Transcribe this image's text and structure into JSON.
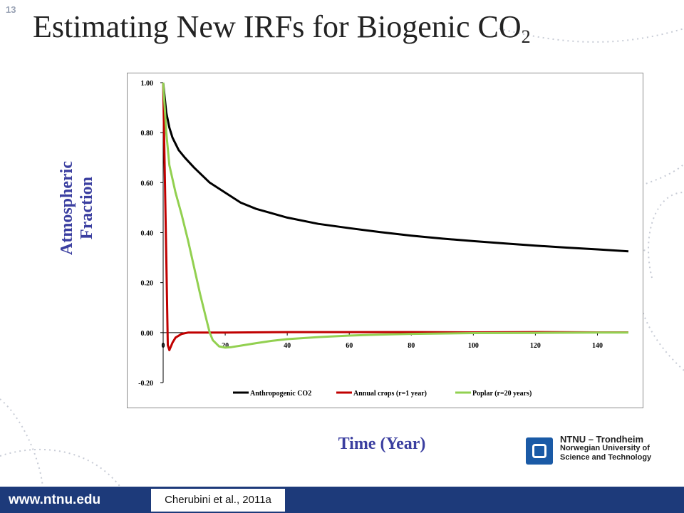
{
  "slide": {
    "number": "13",
    "title_main": "Estimating New IRFs for Biogenic CO",
    "title_sub": "2",
    "ylabel_line1": "Atmospheric",
    "ylabel_line2": "Fraction",
    "xlabel": "Time (Year)",
    "logo": {
      "line1": "NTNU – Trondheim",
      "line2": "Norwegian University of",
      "line3": "Science and Technology"
    },
    "footer_url": "www.ntnu.edu",
    "citation": "Cherubini et al., 2011a"
  },
  "colors": {
    "accent_text": "#3b3fa0",
    "footer_bar": "#1d3a7a",
    "logo_blue": "#1a5aa6"
  },
  "chart_data": {
    "type": "line",
    "xlim": [
      0,
      150
    ],
    "ylim": [
      -0.2,
      1.0
    ],
    "y_ticks": [
      "1.00",
      "0.80",
      "0.60",
      "0.40",
      "0.20",
      "0.00",
      "-0.20"
    ],
    "y_tick_values": [
      1.0,
      0.8,
      0.6,
      0.4,
      0.2,
      0.0,
      -0.2
    ],
    "x_ticks": [
      "0",
      "20",
      "40",
      "60",
      "80",
      "100",
      "120",
      "140"
    ],
    "x_tick_values": [
      0,
      20,
      40,
      60,
      80,
      100,
      120,
      140
    ],
    "grid": false,
    "legend_position": "bottom",
    "series": [
      {
        "name": "Anthropogenic CO2",
        "color": "#000000",
        "x": [
          0,
          1,
          2,
          3,
          5,
          7,
          10,
          15,
          20,
          25,
          30,
          40,
          50,
          60,
          70,
          80,
          90,
          100,
          110,
          120,
          130,
          140,
          150
        ],
        "y": [
          1.0,
          0.88,
          0.82,
          0.78,
          0.73,
          0.7,
          0.66,
          0.6,
          0.56,
          0.52,
          0.495,
          0.46,
          0.435,
          0.418,
          0.402,
          0.388,
          0.376,
          0.366,
          0.357,
          0.348,
          0.34,
          0.333,
          0.325
        ]
      },
      {
        "name": "Annual crops (r=1 year)",
        "color": "#c00000",
        "x": [
          0,
          1,
          1.5,
          2,
          3,
          4,
          6,
          8,
          10,
          15,
          20,
          40,
          60,
          80,
          100,
          120,
          140,
          150
        ],
        "y": [
          1.0,
          0.3,
          -0.05,
          -0.07,
          -0.04,
          -0.02,
          -0.005,
          0.0,
          0.0,
          0.0,
          0.0,
          0.002,
          0.002,
          0.002,
          0.001,
          0.002,
          0.001,
          0.001
        ]
      },
      {
        "name": "Poplar (r=20 years)",
        "color": "#92d050",
        "x": [
          0,
          1,
          2,
          4,
          6,
          8,
          10,
          12,
          14,
          15,
          16,
          18,
          20,
          22,
          25,
          30,
          35,
          40,
          50,
          60,
          70,
          80,
          100,
          120,
          140,
          150
        ],
        "y": [
          1.0,
          0.8,
          0.67,
          0.56,
          0.47,
          0.37,
          0.26,
          0.15,
          0.05,
          0.0,
          -0.03,
          -0.055,
          -0.06,
          -0.058,
          -0.052,
          -0.042,
          -0.033,
          -0.026,
          -0.018,
          -0.012,
          -0.008,
          -0.005,
          -0.002,
          -0.001,
          0.0,
          0.0
        ]
      }
    ]
  }
}
